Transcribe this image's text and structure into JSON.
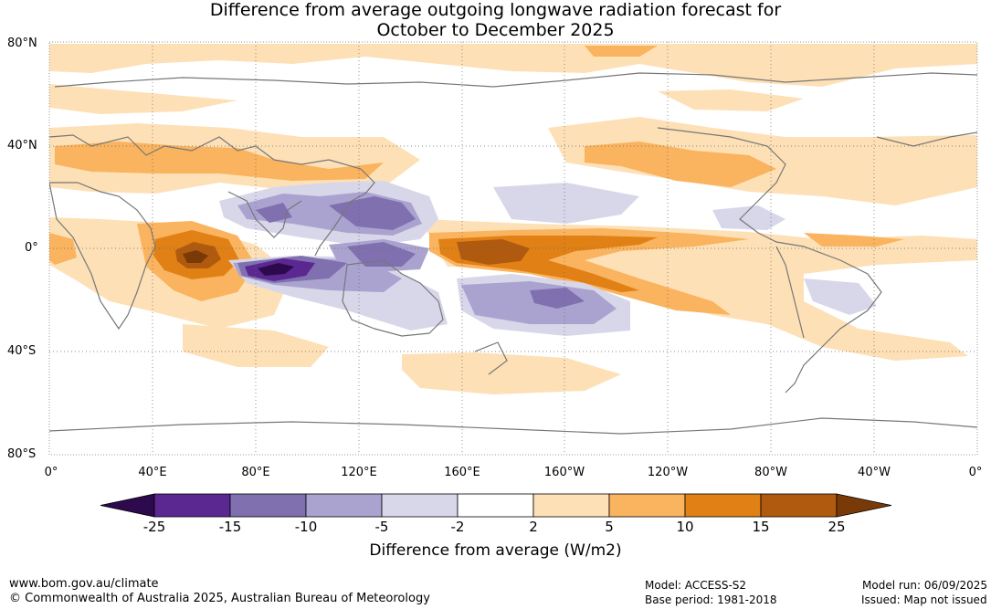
{
  "title": {
    "line1": "Difference from average outgoing longwave radiation forecast for",
    "line2": "October to December 2025"
  },
  "map": {
    "lat_labels": [
      "80°N",
      "40°N",
      "0°",
      "40°S",
      "80°S"
    ],
    "lon_labels": [
      "0°",
      "40°E",
      "80°E",
      "120°E",
      "160°E",
      "160°W",
      "120°W",
      "80°W",
      "40°W",
      "0°"
    ]
  },
  "colorbar": {
    "title": "Difference from average (W/m2)",
    "ticks": [
      "-25",
      "-15",
      "-10",
      "-5",
      "-2",
      "2",
      "5",
      "10",
      "15",
      "25"
    ],
    "colors": [
      "#2d0a4e",
      "#5a2890",
      "#8070b0",
      "#aba3cf",
      "#d8d7ea",
      "#ffffff",
      "#fde0b6",
      "#fab35e",
      "#e08015",
      "#b05a10",
      "#7a3a08"
    ]
  },
  "footer": {
    "url": "www.bom.gov.au/climate",
    "copyright": "© Commonwealth of Australia 2025, Australian Bureau of Meteorology",
    "model": "Model: ACCESS-S2",
    "base_period": "Base period: 1981-2018",
    "model_run": "Model run: 06/09/2025",
    "issued": "Issued: Map not issued"
  }
}
